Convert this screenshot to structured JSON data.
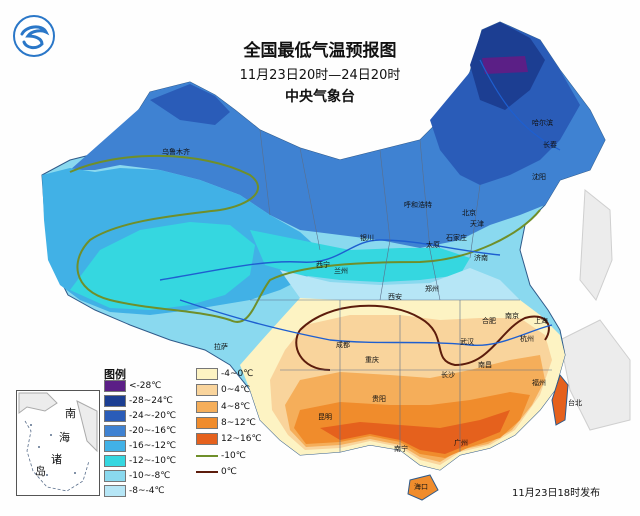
{
  "header": {
    "title": "全国最低气温预报图",
    "period": "11月23日20时—24日20时",
    "agency": "中央气象台"
  },
  "legend": {
    "title": "图例",
    "items": [
      {
        "label": "<-28℃",
        "color": "#5b1f86",
        "kind": "fill"
      },
      {
        "label": "-28~24℃",
        "color": "#1c3e92",
        "kind": "fill"
      },
      {
        "label": "-24~-20℃",
        "color": "#2a5cb8",
        "kind": "fill"
      },
      {
        "label": "-20~-16℃",
        "color": "#3f82d2",
        "kind": "fill"
      },
      {
        "label": "-16~-12℃",
        "color": "#41b1e6",
        "kind": "fill"
      },
      {
        "label": "-12~-10℃",
        "color": "#35d7e0",
        "kind": "fill"
      },
      {
        "label": "-10~-8℃",
        "color": "#8ad9ef",
        "kind": "fill"
      },
      {
        "label": "-8~-4℃",
        "color": "#b6e6f6",
        "kind": "fill"
      },
      {
        "label": "-4~0℃",
        "color": "#fdf3c3",
        "kind": "fill"
      },
      {
        "label": "0~4℃",
        "color": "#f9d49c",
        "kind": "fill"
      },
      {
        "label": "4~8℃",
        "color": "#f5ae5a",
        "kind": "fill"
      },
      {
        "label": "8~12℃",
        "color": "#f08c2c",
        "kind": "fill"
      },
      {
        "label": "12~16℃",
        "color": "#e5611d",
        "kind": "fill"
      },
      {
        "label": "-10℃",
        "color": "#6f8f2a",
        "kind": "line"
      },
      {
        "label": "0℃",
        "color": "#5c1c0c",
        "kind": "line"
      }
    ]
  },
  "inset": {
    "labels": [
      "南",
      "海",
      "诸",
      "岛"
    ]
  },
  "cities": [
    {
      "name": "乌鲁木齐"
    },
    {
      "name": "哈尔滨"
    },
    {
      "name": "长春"
    },
    {
      "name": "沈阳"
    },
    {
      "name": "呼和浩特"
    },
    {
      "name": "北京"
    },
    {
      "name": "天津"
    },
    {
      "name": "石家庄"
    },
    {
      "name": "太原"
    },
    {
      "name": "银川"
    },
    {
      "name": "西宁"
    },
    {
      "name": "兰州"
    },
    {
      "name": "济南"
    },
    {
      "name": "郑州"
    },
    {
      "name": "西安"
    },
    {
      "name": "合肥"
    },
    {
      "name": "南京"
    },
    {
      "name": "上海"
    },
    {
      "name": "杭州"
    },
    {
      "name": "武汉"
    },
    {
      "name": "成都"
    },
    {
      "name": "重庆"
    },
    {
      "name": "长沙"
    },
    {
      "name": "南昌"
    },
    {
      "name": "福州"
    },
    {
      "name": "台北"
    },
    {
      "name": "贵阳"
    },
    {
      "name": "昆明"
    },
    {
      "name": "南宁"
    },
    {
      "name": "广州"
    },
    {
      "name": "海口"
    },
    {
      "name": "拉萨"
    }
  ],
  "footer": {
    "release": "11月23日18时发布"
  }
}
